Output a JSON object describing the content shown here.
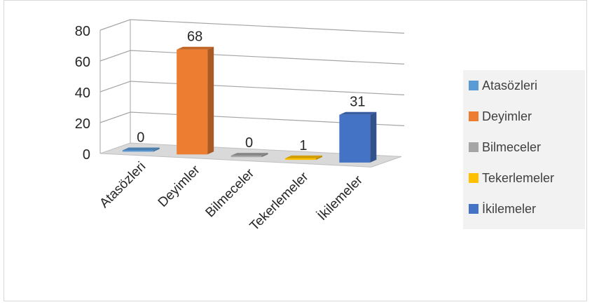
{
  "chart_data": {
    "type": "bar",
    "style": "3d-column",
    "categories": [
      "Atasözleri",
      "Deyimler",
      "Bilmeceler",
      "Tekerlemeler",
      "İkilemeler"
    ],
    "values": [
      0,
      68,
      0,
      1,
      31
    ],
    "data_labels": [
      "0",
      "68",
      "0",
      "1",
      "31"
    ],
    "colors": [
      "#5B9BD5",
      "#ED7D31",
      "#A5A5A5",
      "#FFC000",
      "#4472C4"
    ],
    "y_ticks": [
      "0",
      "20",
      "40",
      "60",
      "80"
    ],
    "ylim": [
      0,
      80
    ],
    "grid": true,
    "legend": {
      "position": "right",
      "items": [
        {
          "label": "Atasözleri",
          "color": "#5B9BD5"
        },
        {
          "label": "Deyimler",
          "color": "#ED7D31"
        },
        {
          "label": "Bilmeceler",
          "color": "#A5A5A5"
        },
        {
          "label": "Tekerlemeler",
          "color": "#FFC000"
        },
        {
          "label": "İkilemeler",
          "color": "#4472C4"
        }
      ]
    }
  }
}
